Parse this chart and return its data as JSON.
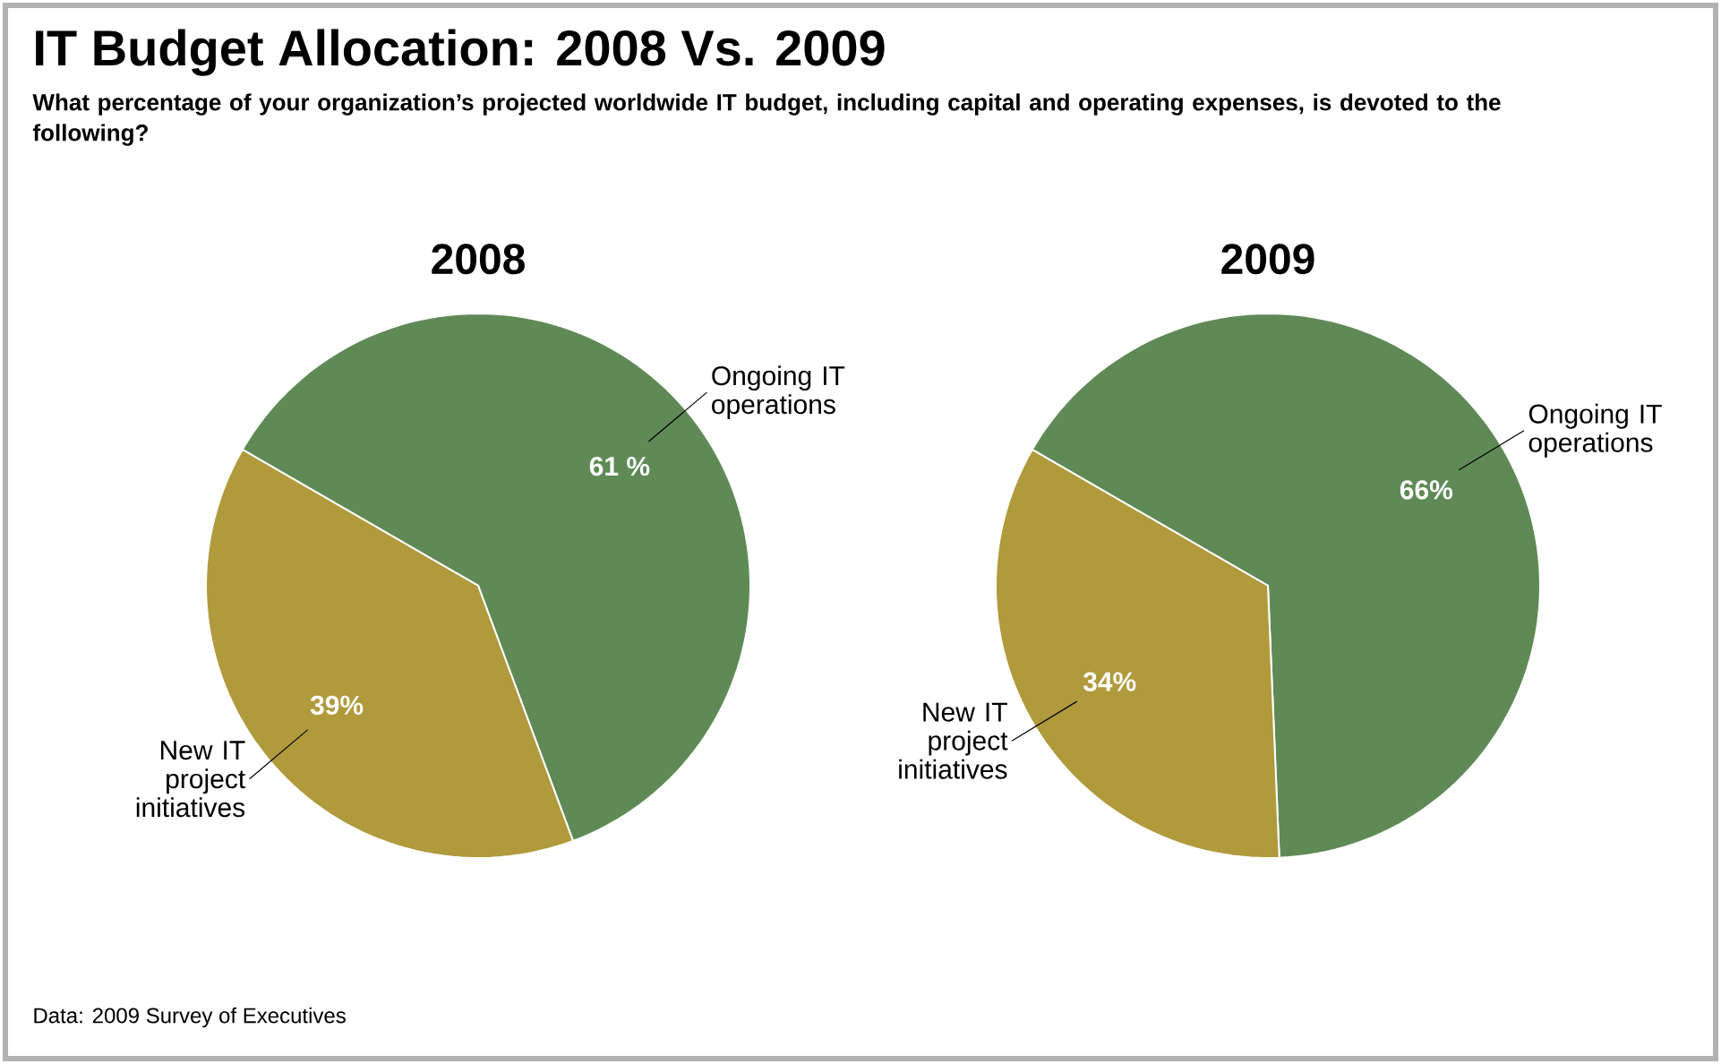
{
  "chart_data": [
    {
      "type": "other",
      "title": "IT Budget Allocation: 2008 Vs. 2009",
      "subtitle": "What percentage of your organization’s projected worldwide IT budget, including capital and operating expenses, is devoted to the following?",
      "annotations": [
        "Data: 2009 Survey of Executives"
      ]
    },
    {
      "type": "pie",
      "title": "2008",
      "categories": [
        "Ongoing IT operations",
        "New IT project initiatives"
      ],
      "values": [
        61,
        39
      ],
      "colors": [
        "#5f8a56",
        "#b09a3c"
      ],
      "value_labels": [
        "61 %",
        "39%"
      ]
    },
    {
      "type": "pie",
      "title": "2009",
      "categories": [
        "Ongoing IT operations",
        "New IT project initiatives"
      ],
      "values": [
        66,
        34
      ],
      "colors": [
        "#5f8a56",
        "#b09a3c"
      ],
      "value_labels": [
        "66%",
        "34%"
      ]
    }
  ]
}
